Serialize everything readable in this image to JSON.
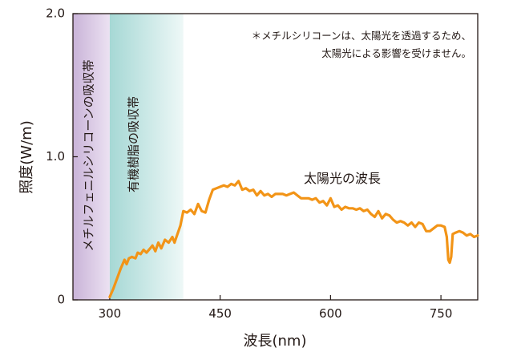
{
  "chart_data": {
    "type": "line",
    "xlabel": "波長(nm)",
    "ylabel": "照度(W/m)",
    "xlim": [
      250,
      800
    ],
    "ylim": [
      0,
      2.0
    ],
    "x_ticks": [
      300,
      450,
      600,
      750
    ],
    "y_ticks": [
      0,
      1.0,
      2.0
    ],
    "x_tick_labels": [
      "300",
      "450",
      "600",
      "750"
    ],
    "y_tick_labels": [
      "0",
      "1.0",
      "2.0"
    ],
    "bands": [
      {
        "label": "メチルフェニルシリコーンの吸収帯",
        "x_start": 250,
        "x_end": 300,
        "color_from": "#c9b3d8",
        "color_to": "#ece2f2"
      },
      {
        "label": "有機樹脂の吸収帯",
        "x_start": 300,
        "x_end": 400,
        "color_from": "#a6d8d5",
        "color_to": "#eef8f7"
      }
    ],
    "annotation": [
      "＊メチルシリコーンは、太陽光を透過するため、",
      "太陽光による影響を受けません。"
    ],
    "series": [
      {
        "name": "太陽光の波長",
        "color": "#f29417",
        "x": [
          300,
          305,
          310,
          315,
          320,
          323,
          326,
          330,
          335,
          338,
          342,
          346,
          350,
          355,
          358,
          362,
          366,
          370,
          375,
          380,
          385,
          388,
          392,
          396,
          400,
          405,
          410,
          415,
          420,
          425,
          430,
          435,
          440,
          445,
          450,
          455,
          460,
          465,
          470,
          475,
          480,
          485,
          490,
          495,
          500,
          505,
          510,
          515,
          520,
          525,
          530,
          535,
          540,
          545,
          550,
          555,
          560,
          565,
          570,
          575,
          580,
          585,
          590,
          595,
          600,
          605,
          610,
          615,
          620,
          625,
          630,
          635,
          640,
          645,
          650,
          655,
          660,
          665,
          670,
          675,
          680,
          685,
          690,
          695,
          700,
          705,
          710,
          715,
          720,
          725,
          730,
          735,
          740,
          745,
          750,
          755,
          758,
          760,
          762,
          764,
          766,
          770,
          775,
          780,
          785,
          790,
          795,
          800
        ],
        "y": [
          0.02,
          0.08,
          0.15,
          0.22,
          0.28,
          0.25,
          0.29,
          0.3,
          0.29,
          0.33,
          0.32,
          0.35,
          0.33,
          0.36,
          0.38,
          0.34,
          0.4,
          0.36,
          0.42,
          0.4,
          0.44,
          0.4,
          0.46,
          0.52,
          0.62,
          0.61,
          0.63,
          0.6,
          0.67,
          0.62,
          0.61,
          0.7,
          0.77,
          0.78,
          0.79,
          0.8,
          0.79,
          0.81,
          0.8,
          0.83,
          0.77,
          0.78,
          0.76,
          0.77,
          0.73,
          0.76,
          0.73,
          0.74,
          0.72,
          0.74,
          0.74,
          0.74,
          0.73,
          0.74,
          0.75,
          0.73,
          0.71,
          0.71,
          0.71,
          0.7,
          0.71,
          0.68,
          0.69,
          0.66,
          0.71,
          0.65,
          0.66,
          0.63,
          0.65,
          0.64,
          0.64,
          0.63,
          0.64,
          0.62,
          0.63,
          0.6,
          0.58,
          0.62,
          0.57,
          0.6,
          0.59,
          0.56,
          0.54,
          0.55,
          0.54,
          0.52,
          0.54,
          0.51,
          0.54,
          0.53,
          0.48,
          0.48,
          0.5,
          0.52,
          0.52,
          0.51,
          0.44,
          0.28,
          0.26,
          0.3,
          0.46,
          0.47,
          0.48,
          0.47,
          0.45,
          0.46,
          0.44,
          0.45
        ]
      }
    ]
  }
}
